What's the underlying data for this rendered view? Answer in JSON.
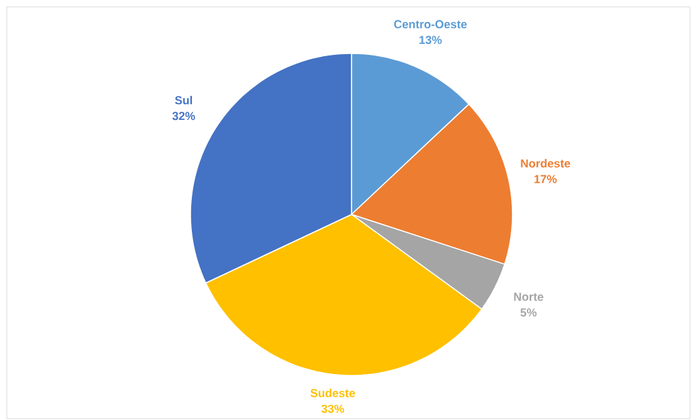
{
  "chart_data": {
    "type": "pie",
    "categories": [
      "Centro-Oeste",
      "Nordeste",
      "Norte",
      "Sudeste",
      "Sul"
    ],
    "values": [
      13,
      17,
      5,
      33,
      32
    ],
    "colors": [
      "#5b9bd5",
      "#ed7d31",
      "#a5a5a5",
      "#ffc000",
      "#4472c4"
    ],
    "value_labels": [
      "13%",
      "17%",
      "5%",
      "33%",
      "32%"
    ]
  }
}
